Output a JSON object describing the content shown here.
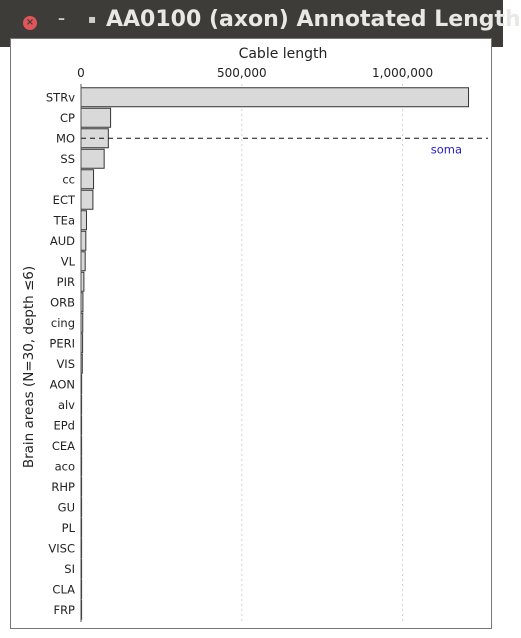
{
  "window": {
    "title": "AA0100 (axon) Annotated Length",
    "close_glyph": "×",
    "minimize_glyph": "–",
    "maximize_glyph": "▪"
  },
  "chart_data": {
    "type": "bar",
    "orientation": "horizontal",
    "title": "Cable length",
    "xlabel": "Cable length",
    "ylabel": "Brain areas (N=30, depth ≤6)",
    "xlim": [
      0,
      1250000
    ],
    "xticks": [
      0,
      500000,
      1000000
    ],
    "xtick_labels": [
      "0",
      "500,000",
      "1,000,000"
    ],
    "grid": true,
    "axis_position": "top",
    "categories": [
      "STRv",
      "CP",
      "MO",
      "SS",
      "cc",
      "ECT",
      "TEa",
      "AUD",
      "VL",
      "PIR",
      "ORB",
      "cing",
      "PERI",
      "VIS",
      "AON",
      "alv",
      "EPd",
      "CEA",
      "aco",
      "RHP",
      "GU",
      "PL",
      "VISC",
      "SI",
      "CLA",
      "FRP"
    ],
    "values": [
      1205000,
      92000,
      85000,
      72000,
      39000,
      37000,
      17000,
      15000,
      13000,
      9000,
      6000,
      5500,
      5000,
      4000,
      2000,
      1000,
      400,
      300,
      200,
      200,
      150,
      100,
      100,
      50,
      50,
      50
    ],
    "bar_color": "#d9d9d9",
    "bar_edge_color": "#333333",
    "annotation": {
      "label": "soma",
      "category": "MO",
      "color": "#2222cc",
      "style": "dashed"
    }
  }
}
